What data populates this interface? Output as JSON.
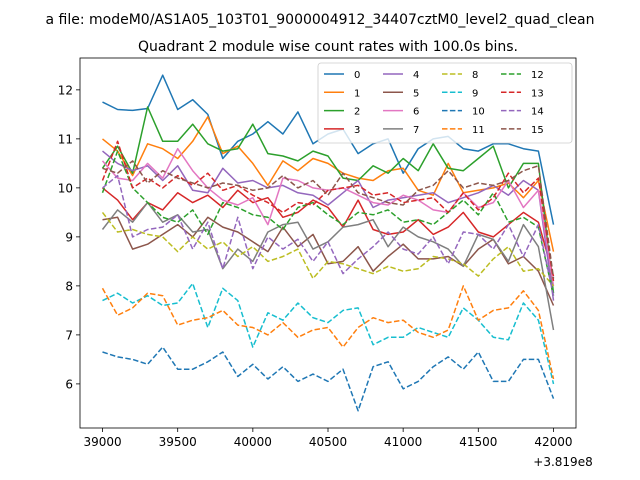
{
  "chart_data": {
    "type": "line",
    "suptitle": "a file: modeM0/AS1A05_103T01_9000004912_34407cztM0_level2_quad_clean",
    "title": "Quadrant 2 module wise count rates with 100.0s bins.",
    "xlabel": "",
    "ylabel": "",
    "x_offset_label": "+3.819e8",
    "xlim": [
      38850,
      42150
    ],
    "ylim": [
      5.1,
      12.65
    ],
    "xticks": [
      39000,
      39500,
      40000,
      40500,
      41000,
      41500,
      42000
    ],
    "yticks": [
      6,
      7,
      8,
      9,
      10,
      11,
      12
    ],
    "grid": false,
    "legend": {
      "placement": "top-right",
      "ncol": 4
    },
    "x": [
      39000,
      39100,
      39200,
      39300,
      39400,
      39500,
      39600,
      39700,
      39800,
      39900,
      40000,
      40100,
      40200,
      40300,
      40400,
      40500,
      40600,
      40700,
      40800,
      40900,
      41000,
      41100,
      41200,
      41300,
      41400,
      41500,
      41600,
      41700,
      41800,
      41900,
      42000
    ],
    "series": [
      {
        "name": "0",
        "color": "#1f77b4",
        "dash": "solid",
        "values": [
          11.75,
          11.6,
          11.58,
          11.62,
          12.3,
          11.6,
          11.8,
          11.5,
          10.6,
          10.95,
          11.1,
          11.35,
          11.1,
          11.55,
          10.9,
          11.1,
          11.2,
          10.7,
          10.9,
          11.0,
          10.3,
          10.8,
          11.0,
          11.05,
          10.8,
          10.75,
          10.9,
          10.9,
          10.8,
          10.75,
          9.25
        ]
      },
      {
        "name": "1",
        "color": "#ff7f0e",
        "dash": "solid",
        "values": [
          11.0,
          10.75,
          10.25,
          10.9,
          10.8,
          10.6,
          10.95,
          11.45,
          10.7,
          10.85,
          10.5,
          10.05,
          10.55,
          10.35,
          10.6,
          10.5,
          10.3,
          10.2,
          10.15,
          10.35,
          10.4,
          9.95,
          9.85,
          10.5,
          9.9,
          9.95,
          10.0,
          10.1,
          9.8,
          10.15,
          8.7
        ]
      },
      {
        "name": "2",
        "color": "#2ca02c",
        "dash": "solid",
        "values": [
          10.4,
          10.85,
          10.3,
          11.65,
          10.95,
          10.95,
          11.3,
          10.9,
          10.75,
          10.8,
          11.3,
          10.7,
          10.65,
          10.55,
          10.75,
          10.65,
          10.2,
          10.15,
          10.45,
          10.3,
          10.6,
          10.35,
          10.9,
          10.4,
          10.35,
          10.6,
          10.85,
          10.0,
          10.5,
          10.5,
          7.85
        ]
      },
      {
        "name": "3",
        "color": "#d62728",
        "dash": "solid",
        "values": [
          10.0,
          9.75,
          9.35,
          9.7,
          9.55,
          9.9,
          9.7,
          9.85,
          9.6,
          9.95,
          9.7,
          9.8,
          9.4,
          9.5,
          9.75,
          9.6,
          9.2,
          9.75,
          9.15,
          9.05,
          9.1,
          9.35,
          9.05,
          9.2,
          9.5,
          9.1,
          9.0,
          9.25,
          9.5,
          9.3,
          8.2
        ]
      },
      {
        "name": "4",
        "color": "#9467bd",
        "dash": "solid",
        "values": [
          10.75,
          10.5,
          10.35,
          10.45,
          10.15,
          10.45,
          9.95,
          9.9,
          10.4,
          10.1,
          10.15,
          10.0,
          10.05,
          9.9,
          9.85,
          9.65,
          9.9,
          10.15,
          9.6,
          9.75,
          9.8,
          9.85,
          9.9,
          9.7,
          9.8,
          9.9,
          10.05,
          9.85,
          10.15,
          9.95,
          7.7
        ]
      },
      {
        "name": "5",
        "color": "#8c564b",
        "dash": "solid",
        "values": [
          9.35,
          9.4,
          8.75,
          8.85,
          9.05,
          9.25,
          9.0,
          9.4,
          9.2,
          9.1,
          8.9,
          8.7,
          9.2,
          8.8,
          9.05,
          8.45,
          8.5,
          8.8,
          8.3,
          8.6,
          8.85,
          8.55,
          8.55,
          8.6,
          8.4,
          8.75,
          8.95,
          8.45,
          8.6,
          8.3,
          7.6
        ]
      },
      {
        "name": "6",
        "color": "#e377c2",
        "dash": "solid",
        "values": [
          10.55,
          10.2,
          10.15,
          10.5,
          10.2,
          10.8,
          10.35,
          10.0,
          9.75,
          9.65,
          9.8,
          9.25,
          10.2,
          10.15,
          10.0,
          9.95,
          10.0,
          9.85,
          9.7,
          9.65,
          9.85,
          9.75,
          9.55,
          9.5,
          9.9,
          9.6,
          9.7,
          10.15,
          9.6,
          9.95,
          8.0
        ]
      },
      {
        "name": "7",
        "color": "#7f7f7f",
        "dash": "solid",
        "values": [
          9.15,
          9.55,
          9.3,
          9.7,
          9.3,
          9.45,
          9.1,
          9.15,
          8.35,
          8.75,
          8.5,
          9.1,
          9.25,
          9.3,
          8.75,
          8.9,
          9.2,
          9.25,
          9.35,
          8.8,
          9.2,
          9.0,
          8.9,
          8.75,
          8.4,
          9.05,
          8.95,
          8.5,
          9.25,
          8.8,
          7.1
        ]
      },
      {
        "name": "8",
        "color": "#bcbd22",
        "dash": "dashed",
        "values": [
          9.5,
          9.1,
          9.15,
          9.05,
          9.0,
          8.7,
          9.0,
          8.75,
          8.9,
          8.6,
          8.8,
          8.5,
          8.6,
          8.75,
          8.15,
          8.5,
          8.45,
          8.35,
          8.25,
          8.4,
          8.3,
          8.35,
          8.6,
          8.55,
          8.45,
          8.2,
          8.55,
          8.8,
          8.3,
          8.35,
          8.0
        ]
      },
      {
        "name": "9",
        "color": "#17becf",
        "dash": "dashed",
        "values": [
          7.7,
          7.85,
          7.65,
          7.8,
          7.6,
          7.65,
          8.05,
          7.15,
          7.95,
          7.7,
          6.75,
          7.45,
          7.3,
          7.65,
          7.35,
          7.25,
          7.5,
          7.55,
          6.8,
          6.95,
          6.95,
          7.15,
          7.05,
          6.95,
          7.55,
          7.3,
          6.95,
          6.9,
          7.65,
          7.3,
          6.0
        ]
      },
      {
        "name": "10",
        "color": "#1f77b4",
        "dash": "dashed",
        "values": [
          6.65,
          6.55,
          6.5,
          6.4,
          6.75,
          6.3,
          6.3,
          6.45,
          6.65,
          6.15,
          6.4,
          6.1,
          6.35,
          6.05,
          6.2,
          6.05,
          6.3,
          5.45,
          6.35,
          6.45,
          5.9,
          6.05,
          6.35,
          6.55,
          6.3,
          6.65,
          6.05,
          6.05,
          6.5,
          6.5,
          5.7
        ]
      },
      {
        "name": "11",
        "color": "#ff7f0e",
        "dash": "dashed",
        "values": [
          7.95,
          7.4,
          7.55,
          7.85,
          7.8,
          7.2,
          7.3,
          7.35,
          7.5,
          7.2,
          7.15,
          7.0,
          7.25,
          6.95,
          7.1,
          7.15,
          6.75,
          7.15,
          7.35,
          7.25,
          7.3,
          7.05,
          6.95,
          7.1,
          8.0,
          7.3,
          7.5,
          7.55,
          7.9,
          7.5,
          6.1
        ]
      },
      {
        "name": "12",
        "color": "#2ca02c",
        "dash": "dashed",
        "values": [
          9.9,
          10.75,
          10.0,
          9.7,
          9.4,
          9.3,
          9.55,
          9.05,
          9.7,
          9.6,
          9.45,
          9.4,
          9.15,
          9.6,
          9.7,
          9.45,
          9.25,
          9.5,
          9.45,
          9.55,
          9.3,
          9.35,
          9.25,
          9.5,
          9.75,
          9.45,
          9.9,
          9.3,
          9.4,
          9.2,
          7.8
        ]
      },
      {
        "name": "13",
        "color": "#d62728",
        "dash": "dashed",
        "values": [
          10.15,
          10.95,
          10.0,
          10.2,
          10.0,
          10.25,
          10.05,
          10.3,
          9.95,
          10.05,
          9.85,
          9.7,
          9.5,
          9.7,
          9.65,
          9.95,
          10.0,
          10.05,
          9.85,
          9.9,
          9.7,
          9.75,
          9.8,
          9.5,
          9.9,
          9.55,
          9.8,
          10.3,
          9.9,
          10.2,
          8.1
        ]
      },
      {
        "name": "14",
        "color": "#9467bd",
        "dash": "dashed",
        "values": [
          10.0,
          10.25,
          9.0,
          9.15,
          9.2,
          9.45,
          8.75,
          9.3,
          8.35,
          9.4,
          8.35,
          9.0,
          8.75,
          8.95,
          8.5,
          8.9,
          8.25,
          8.55,
          8.8,
          9.1,
          8.75,
          8.65,
          9.0,
          8.45,
          9.1,
          9.05,
          8.75,
          9.25,
          8.6,
          9.25,
          7.8
        ]
      },
      {
        "name": "15",
        "color": "#8c564b",
        "dash": "dashed",
        "values": [
          10.4,
          10.3,
          10.55,
          10.1,
          10.35,
          10.2,
          10.1,
          10.0,
          10.1,
          10.05,
          9.95,
          10.0,
          10.25,
          10.0,
          10.15,
          9.85,
          10.3,
          9.9,
          9.8,
          9.7,
          9.65,
          9.95,
          10.05,
          10.35,
          10.0,
          10.1,
          10.05,
          10.15,
          10.35,
          10.45,
          8.15
        ]
      }
    ]
  }
}
